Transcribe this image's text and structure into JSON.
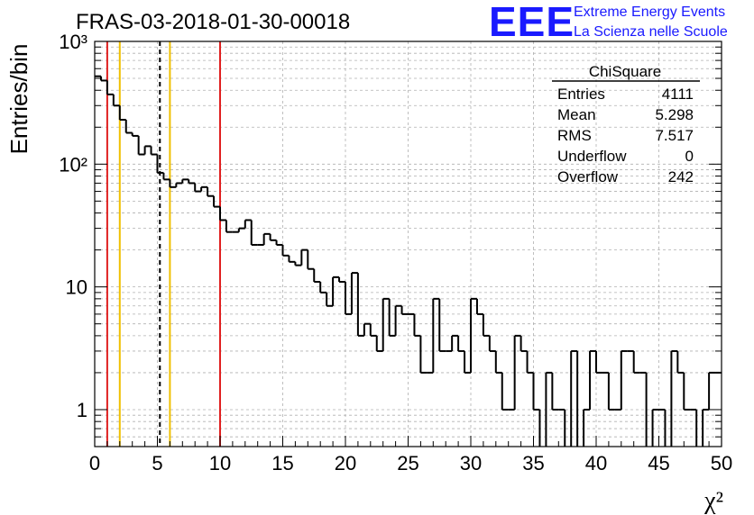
{
  "chart_data": {
    "type": "histogram",
    "title": "FRAS-03-2018-01-30-00018",
    "xlabel": "χ²",
    "ylabel": "Entries/bin",
    "xlim": [
      0,
      50
    ],
    "ylim": [
      0.5,
      1000
    ],
    "yscale": "log",
    "grid": true,
    "bin_width": 0.5,
    "x_ticks": [
      "0",
      "5",
      "10",
      "15",
      "20",
      "25",
      "30",
      "35",
      "40",
      "45",
      "50"
    ],
    "y_ticks": [
      {
        "value": 1,
        "label": "1"
      },
      {
        "value": 10,
        "label": "10"
      },
      {
        "value": 100,
        "label": "10²"
      },
      {
        "value": 1000,
        "label": "10³"
      }
    ],
    "bins": [
      [
        0.0,
        520
      ],
      [
        0.5,
        480
      ],
      [
        1.0,
        370
      ],
      [
        1.5,
        300
      ],
      [
        2.0,
        230
      ],
      [
        2.5,
        180
      ],
      [
        3.0,
        170
      ],
      [
        3.5,
        120
      ],
      [
        4.0,
        140
      ],
      [
        4.5,
        120
      ],
      [
        5.0,
        85
      ],
      [
        5.5,
        75
      ],
      [
        6.0,
        65
      ],
      [
        6.5,
        70
      ],
      [
        7.0,
        75
      ],
      [
        7.5,
        70
      ],
      [
        8.0,
        60
      ],
      [
        8.5,
        65
      ],
      [
        9.0,
        55
      ],
      [
        9.5,
        45
      ],
      [
        10.0,
        35
      ],
      [
        10.5,
        28
      ],
      [
        11.0,
        28
      ],
      [
        11.5,
        30
      ],
      [
        12.0,
        35
      ],
      [
        12.5,
        22
      ],
      [
        13.0,
        22
      ],
      [
        13.5,
        27
      ],
      [
        14.0,
        24
      ],
      [
        14.5,
        22
      ],
      [
        15.0,
        18
      ],
      [
        15.5,
        16
      ],
      [
        16.0,
        15
      ],
      [
        16.5,
        20
      ],
      [
        17.0,
        14
      ],
      [
        17.5,
        11
      ],
      [
        18.0,
        9
      ],
      [
        18.5,
        7
      ],
      [
        19.0,
        12
      ],
      [
        19.5,
        11
      ],
      [
        20.0,
        6
      ],
      [
        20.5,
        13
      ],
      [
        21.0,
        4
      ],
      [
        21.5,
        5
      ],
      [
        22.0,
        4
      ],
      [
        22.5,
        3
      ],
      [
        23.0,
        8
      ],
      [
        23.5,
        4
      ],
      [
        24.0,
        7
      ],
      [
        24.5,
        6
      ],
      [
        25.0,
        6
      ],
      [
        25.5,
        4
      ],
      [
        26.0,
        2
      ],
      [
        26.5,
        2
      ],
      [
        27.0,
        8
      ],
      [
        27.5,
        3
      ],
      [
        28.0,
        3
      ],
      [
        28.5,
        4
      ],
      [
        29.0,
        3
      ],
      [
        29.5,
        2
      ],
      [
        30.0,
        8
      ],
      [
        30.5,
        6
      ],
      [
        31.0,
        4
      ],
      [
        31.5,
        3
      ],
      [
        32.0,
        2
      ],
      [
        32.5,
        1
      ],
      [
        33.0,
        1
      ],
      [
        33.5,
        4
      ],
      [
        34.0,
        3
      ],
      [
        34.5,
        2
      ],
      [
        35.0,
        1
      ],
      [
        35.5,
        0
      ],
      [
        36.0,
        2
      ],
      [
        36.5,
        1
      ],
      [
        37.0,
        1
      ],
      [
        37.5,
        0
      ],
      [
        38.0,
        3
      ],
      [
        38.5,
        0
      ],
      [
        39.0,
        1
      ],
      [
        39.5,
        3
      ],
      [
        40.0,
        2
      ],
      [
        40.5,
        2
      ],
      [
        41.0,
        1
      ],
      [
        41.5,
        1
      ],
      [
        42.0,
        3
      ],
      [
        42.5,
        3
      ],
      [
        43.0,
        2
      ],
      [
        43.5,
        2
      ],
      [
        44.0,
        0
      ],
      [
        44.5,
        1
      ],
      [
        45.0,
        1
      ],
      [
        45.5,
        0
      ],
      [
        46.0,
        3
      ],
      [
        46.5,
        2
      ],
      [
        47.0,
        1
      ],
      [
        47.5,
        1
      ],
      [
        48.0,
        0
      ],
      [
        48.5,
        1
      ],
      [
        49.0,
        2
      ],
      [
        49.5,
        2
      ]
    ],
    "vertical_lines": [
      {
        "x": 1,
        "color": "#e02020",
        "style": "solid"
      },
      {
        "x": 2,
        "color": "#f0c000",
        "style": "solid"
      },
      {
        "x": 5.2,
        "color": "#000000",
        "style": "dashed"
      },
      {
        "x": 6,
        "color": "#f0c000",
        "style": "solid"
      },
      {
        "x": 10,
        "color": "#e02020",
        "style": "solid"
      }
    ],
    "stats_box": {
      "title": "ChiSquare",
      "rows": [
        {
          "label": "Entries",
          "value": "4111"
        },
        {
          "label": "Mean",
          "value": "5.298"
        },
        {
          "label": "RMS",
          "value": "7.517"
        },
        {
          "label": "Underflow",
          "value": "0"
        },
        {
          "label": "Overflow",
          "value": "242"
        }
      ]
    },
    "logo": {
      "text": "EEE",
      "line1": "Extreme Energy Events",
      "line2": "La Scienza nelle Scuole",
      "color": "#1a1aff"
    }
  }
}
